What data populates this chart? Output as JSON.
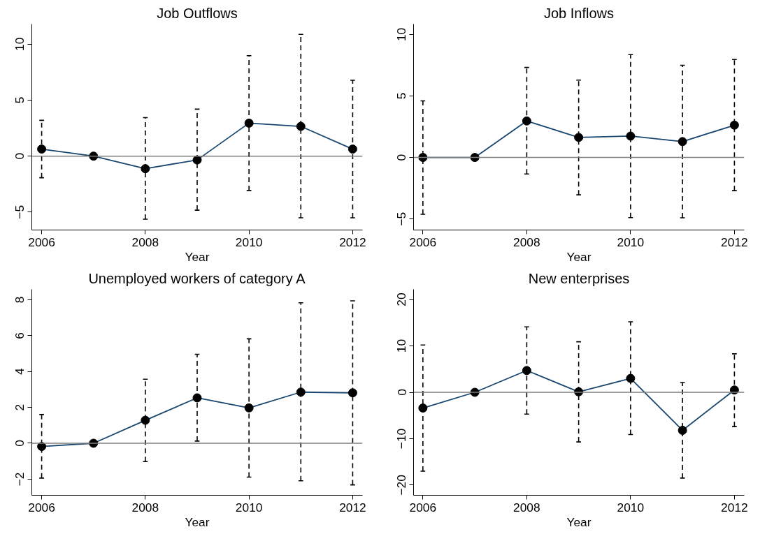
{
  "chart_data": [
    {
      "type": "line",
      "title": "Job Outflows",
      "xlabel": "Year",
      "x": [
        2006,
        2007,
        2008,
        2009,
        2010,
        2011,
        2012
      ],
      "xlim": [
        2005.81,
        2012.19
      ],
      "xticks": [
        2006,
        2008,
        2010,
        2012
      ],
      "ylim": [
        -6.6,
        11.8
      ],
      "yticks": [
        -5,
        0,
        5,
        10
      ],
      "grid": false,
      "marker": "circle",
      "line_style": "solid",
      "ref_lines": [
        {
          "axis": "y",
          "value": 0,
          "color": "#7f7f7f"
        }
      ],
      "series": [
        {
          "color": "#1a476f",
          "values": [
            0.63,
            0,
            -1.12,
            -0.34,
            2.95,
            2.66,
            0.63
          ],
          "errors": [
            [
              -1.93,
              3.2
            ],
            null,
            [
              -5.63,
              3.44
            ],
            [
              -4.83,
              4.2
            ],
            [
              -3.07,
              8.98
            ],
            [
              -5.51,
              10.88
            ],
            [
              -5.51,
              6.78
            ]
          ]
        }
      ]
    },
    {
      "type": "line",
      "title": "Job Inflows",
      "xlabel": "Year",
      "x": [
        2006,
        2007,
        2008,
        2009,
        2010,
        2011,
        2012
      ],
      "xlim": [
        2005.82,
        2012.19
      ],
      "xticks": [
        2006,
        2008,
        2010,
        2012
      ],
      "ylim": [
        -5.9,
        10.85
      ],
      "yticks": [
        -5,
        0,
        5,
        10
      ],
      "grid": false,
      "marker": "circle",
      "line_style": "solid",
      "ref_lines": [
        {
          "axis": "y",
          "value": 0,
          "color": "#7f7f7f"
        }
      ],
      "series": [
        {
          "color": "#1a476f",
          "values": [
            0,
            0,
            2.97,
            1.63,
            1.74,
            1.29,
            2.63
          ],
          "errors": [
            [
              -4.62,
              4.6
            ],
            null,
            [
              -1.34,
              7.32
            ],
            [
              -3.04,
              6.29
            ],
            [
              -4.89,
              8.37
            ],
            [
              -4.91,
              7.5
            ],
            [
              -2.7,
              7.97
            ]
          ]
        }
      ]
    },
    {
      "type": "line",
      "title": "Unemployed workers of category A",
      "xlabel": "Year",
      "x": [
        2006,
        2007,
        2008,
        2009,
        2010,
        2011,
        2012
      ],
      "xlim": [
        2005.81,
        2012.19
      ],
      "xticks": [
        2006,
        2008,
        2010,
        2012
      ],
      "ylim": [
        -2.9,
        8.58
      ],
      "yticks": [
        -2,
        0,
        2,
        4,
        6,
        8
      ],
      "grid": false,
      "marker": "circle",
      "line_style": "solid",
      "ref_lines": [
        {
          "axis": "y",
          "value": 0,
          "color": "#7f7f7f"
        }
      ],
      "series": [
        {
          "color": "#1a476f",
          "values": [
            -0.18,
            0,
            1.28,
            2.53,
            1.97,
            2.85,
            2.81
          ],
          "errors": [
            [
              -1.94,
              1.6
            ],
            null,
            [
              -1.02,
              3.57
            ],
            [
              0.12,
              4.96
            ],
            [
              -1.89,
              5.82
            ],
            [
              -2.09,
              7.83
            ],
            [
              -2.32,
              7.94
            ]
          ]
        }
      ]
    },
    {
      "type": "line",
      "title": "New enterprises",
      "xlabel": "Year",
      "x": [
        2006,
        2007,
        2008,
        2009,
        2010,
        2011,
        2012
      ],
      "xlim": [
        2005.82,
        2012.19
      ],
      "xticks": [
        2006,
        2008,
        2010,
        2012
      ],
      "ylim": [
        -22.2,
        22.2
      ],
      "yticks": [
        -20,
        -10,
        0,
        10,
        20
      ],
      "grid": false,
      "marker": "circle",
      "line_style": "solid",
      "ref_lines": [
        {
          "axis": "y",
          "value": 0,
          "color": "#7f7f7f"
        }
      ],
      "series": [
        {
          "color": "#1a476f",
          "values": [
            -3.4,
            0,
            4.7,
            0.1,
            3.0,
            -8.2,
            0.5
          ],
          "errors": [
            [
              -17.0,
              10.2
            ],
            null,
            [
              -4.7,
              14.1
            ],
            [
              -10.7,
              10.9
            ],
            [
              -9.1,
              15.2
            ],
            [
              -18.5,
              2.1
            ],
            [
              -7.4,
              8.3
            ]
          ]
        }
      ]
    }
  ]
}
